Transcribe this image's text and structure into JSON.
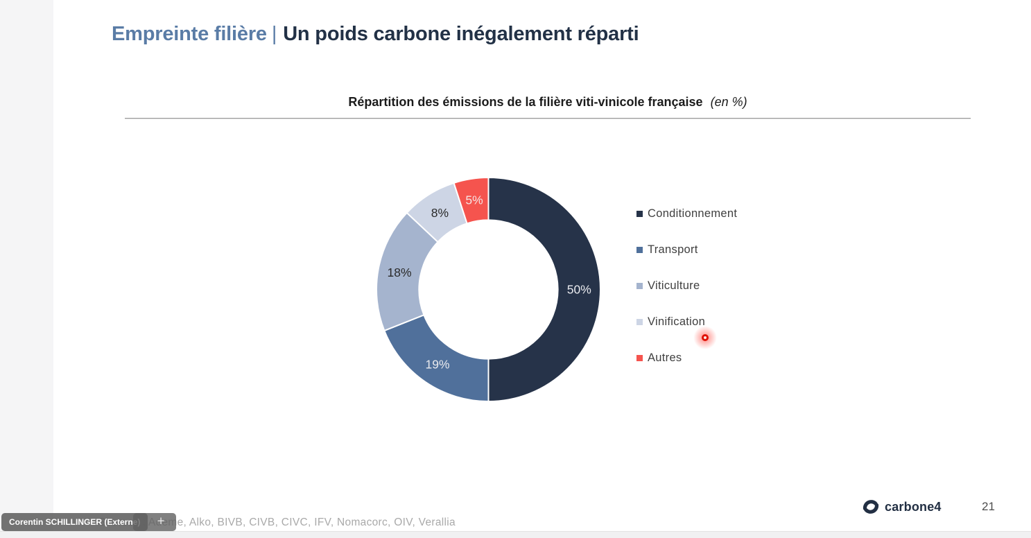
{
  "slide": {
    "title": {
      "highlight": "Empreinte filière",
      "separator": "|",
      "rest": "Un poids carbone inégalement réparti"
    },
    "footer": {
      "sources": "Sources : Ademe, Alko, BIVB, CIVB, CIVC, IFV, Nomacorc, OIV, Verallia",
      "logo_text": "carbone4",
      "page_number": "21"
    }
  },
  "overlay": {
    "presence_name_tag": "Corentin SCHILLINGER (Externe)",
    "cursor_badge_glyph": "+"
  },
  "chart_data": {
    "type": "pie",
    "subtype": "donut",
    "title": "Répartition des émissions de la filière viti-vinicole française",
    "title_suffix": "(en %)",
    "unit": "%",
    "categories": [
      "Conditionnement",
      "Transport",
      "Viticulture",
      "Vinification",
      "Autres"
    ],
    "values": [
      50,
      19,
      18,
      8,
      5
    ],
    "slice_labels": [
      "50%",
      "19%",
      "18%",
      "8%",
      "5%"
    ],
    "colors": [
      "#263349",
      "#50709b",
      "#a5b4ce",
      "#cdd5e5",
      "#f5544e"
    ],
    "slice_label_colors": [
      "#e9eaee",
      "#e9eaee",
      "#2a2a2a",
      "#2a2a2a",
      "#f6e3e2"
    ],
    "start_angle_deg": 0,
    "direction": "clockwise",
    "donut_hole_ratio": 0.62,
    "legend_position": "right"
  },
  "theme": {
    "title_highlight_color": "#5a7ca6",
    "title_text_color": "#223146",
    "legend_text_color": "#3f3f3f",
    "sources_text_color": "#a9a9a9",
    "laser_pointer_color": "#e01207"
  }
}
